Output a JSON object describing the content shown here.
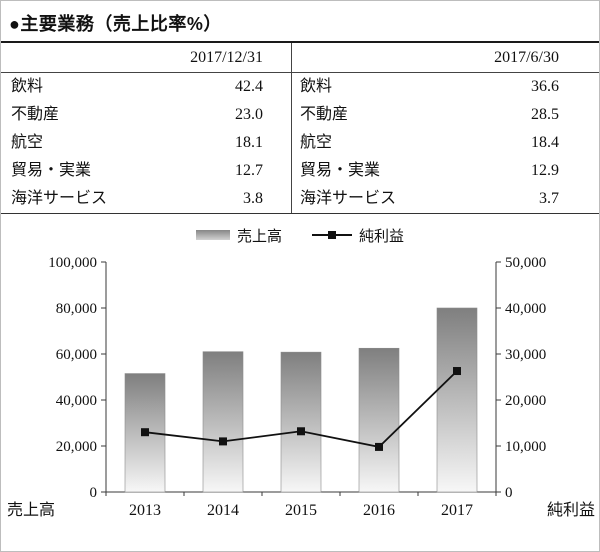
{
  "title": "●主要業務（売上比率%）",
  "table": {
    "left": {
      "date": "2017/12/31",
      "rows": [
        {
          "label": "飲料",
          "value": "42.4"
        },
        {
          "label": "不動産",
          "value": "23.0"
        },
        {
          "label": "航空",
          "value": "18.1"
        },
        {
          "label": "貿易・実業",
          "value": "12.7"
        },
        {
          "label": "海洋サービス",
          "value": "3.8"
        }
      ]
    },
    "right": {
      "date": "2017/6/30",
      "rows": [
        {
          "label": "飲料",
          "value": "36.6"
        },
        {
          "label": "不動産",
          "value": "28.5"
        },
        {
          "label": "航空",
          "value": "18.4"
        },
        {
          "label": "貿易・実業",
          "value": "12.9"
        },
        {
          "label": "海洋サービス",
          "value": "3.7"
        }
      ]
    }
  },
  "chart_data": {
    "type": "bar+line",
    "title": "",
    "categories": [
      "2013",
      "2014",
      "2015",
      "2016",
      "2017"
    ],
    "series": [
      {
        "name": "売上高",
        "kind": "bar",
        "axis": "left",
        "values": [
          51500,
          61000,
          60800,
          62500,
          80000
        ]
      },
      {
        "name": "純利益",
        "kind": "line",
        "axis": "right",
        "values": [
          13000,
          11000,
          13200,
          9800,
          26300
        ]
      }
    ],
    "left_axis": {
      "title": "売上高",
      "min": 0,
      "max": 100000,
      "ticks": [
        "0",
        "20,000",
        "40,000",
        "60,000",
        "80,000",
        "100,000"
      ]
    },
    "right_axis": {
      "title": "純利益",
      "min": 0,
      "max": 50000,
      "ticks": [
        "0",
        "10,000",
        "20,000",
        "30,000",
        "40,000",
        "50,000"
      ]
    },
    "legend": {
      "position": "top",
      "entries": [
        "売上高",
        "純利益"
      ]
    },
    "grid": false,
    "colors": {
      "bar_top": "#7f7f7f",
      "bar_bottom": "#f7f7f7",
      "line": "#111111",
      "bar_stroke": "#8a8a8a"
    }
  }
}
